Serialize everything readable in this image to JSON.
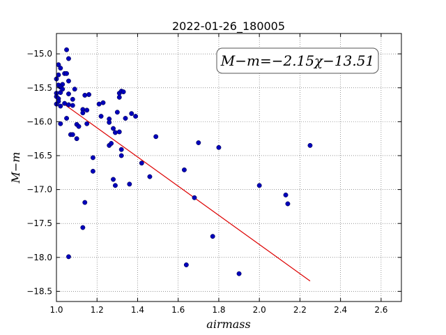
{
  "chart_data": {
    "type": "scatter",
    "title": "2022-01-26_180005",
    "xlabel": "airmass",
    "ylabel": "M−m",
    "xlim": [
      1.0,
      2.7
    ],
    "ylim": [
      -18.65,
      -14.7
    ],
    "xticks": [
      1.0,
      1.2,
      1.4,
      1.6,
      1.8,
      2.0,
      2.2,
      2.4,
      2.6
    ],
    "xtick_labels": [
      "1.0",
      "1.2",
      "1.4",
      "1.6",
      "1.8",
      "2.0",
      "2.2",
      "2.4",
      "2.6"
    ],
    "yticks": [
      -15.0,
      -15.5,
      -16.0,
      -16.5,
      -17.0,
      -17.5,
      -18.0,
      -18.5
    ],
    "ytick_labels": [
      "−15.0",
      "−15.5",
      "−16.0",
      "−16.5",
      "−17.0",
      "−17.5",
      "−18.0",
      "−18.5"
    ],
    "grid": true,
    "annotation": "M−m=−2.15χ−13.51",
    "point_color": "#0000bb",
    "fit_color": "#dd0000",
    "fit": {
      "slope": -2.15,
      "intercept": -13.51,
      "x": [
        1.03,
        2.25
      ]
    },
    "points": [
      [
        1.05,
        -14.94
      ],
      [
        1.01,
        -15.16
      ],
      [
        1.02,
        -15.21
      ],
      [
        1.06,
        -15.07
      ],
      [
        1.01,
        -15.31
      ],
      [
        1.04,
        -15.29
      ],
      [
        1.05,
        -15.29
      ],
      [
        1.0,
        -15.37
      ],
      [
        1.03,
        -15.45
      ],
      [
        1.01,
        -15.46
      ],
      [
        1.02,
        -15.49
      ],
      [
        1.06,
        -15.4
      ],
      [
        1.0,
        -15.58
      ],
      [
        1.02,
        -15.57
      ],
      [
        1.03,
        -15.52
      ],
      [
        1.0,
        -15.63
      ],
      [
        1.01,
        -15.66
      ],
      [
        1.01,
        -15.7
      ],
      [
        1.0,
        -15.74
      ],
      [
        1.02,
        -15.77
      ],
      [
        1.04,
        -15.73
      ],
      [
        1.06,
        -15.59
      ],
      [
        1.06,
        -15.75
      ],
      [
        1.08,
        -15.67
      ],
      [
        1.09,
        -15.52
      ],
      [
        1.08,
        -15.76
      ],
      [
        1.05,
        -15.95
      ],
      [
        1.02,
        -16.03
      ],
      [
        1.07,
        -16.19
      ],
      [
        1.08,
        -16.19
      ],
      [
        1.1,
        -16.25
      ],
      [
        1.1,
        -16.04
      ],
      [
        1.11,
        -16.07
      ],
      [
        1.13,
        -15.82
      ],
      [
        1.13,
        -15.87
      ],
      [
        1.14,
        -15.61
      ],
      [
        1.15,
        -15.83
      ],
      [
        1.16,
        -15.6
      ],
      [
        1.15,
        -16.03
      ],
      [
        1.18,
        -16.53
      ],
      [
        1.18,
        -16.73
      ],
      [
        1.14,
        -17.19
      ],
      [
        1.13,
        -17.56
      ],
      [
        1.06,
        -17.99
      ],
      [
        1.21,
        -15.74
      ],
      [
        1.22,
        -15.92
      ],
      [
        1.23,
        -15.72
      ],
      [
        1.26,
        -15.96
      ],
      [
        1.26,
        -16.01
      ],
      [
        1.28,
        -16.1
      ],
      [
        1.29,
        -16.16
      ],
      [
        1.26,
        -16.35
      ],
      [
        1.27,
        -16.32
      ],
      [
        1.3,
        -15.86
      ],
      [
        1.31,
        -15.64
      ],
      [
        1.31,
        -15.58
      ],
      [
        1.32,
        -15.55
      ],
      [
        1.33,
        -15.56
      ],
      [
        1.31,
        -16.15
      ],
      [
        1.32,
        -16.41
      ],
      [
        1.32,
        -16.5
      ],
      [
        1.34,
        -15.95
      ],
      [
        1.37,
        -15.88
      ],
      [
        1.39,
        -15.92
      ],
      [
        1.28,
        -16.85
      ],
      [
        1.29,
        -16.94
      ],
      [
        1.36,
        -16.92
      ],
      [
        1.42,
        -16.61
      ],
      [
        1.46,
        -16.81
      ],
      [
        1.49,
        -16.22
      ],
      [
        1.63,
        -16.71
      ],
      [
        1.68,
        -17.12
      ],
      [
        1.7,
        -16.31
      ],
      [
        1.64,
        -18.11
      ],
      [
        1.77,
        -17.69
      ],
      [
        1.8,
        -16.38
      ],
      [
        1.9,
        -18.24
      ],
      [
        2.0,
        -16.94
      ],
      [
        2.13,
        -17.08
      ],
      [
        2.14,
        -17.21
      ],
      [
        2.25,
        -16.35
      ]
    ]
  }
}
